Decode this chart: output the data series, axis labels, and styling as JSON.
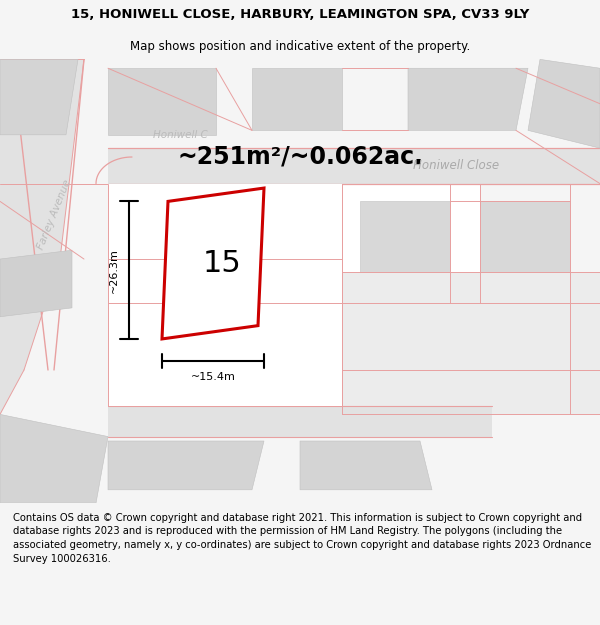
{
  "title_line1": "15, HONIWELL CLOSE, HARBURY, LEAMINGTON SPA, CV33 9LY",
  "title_line2": "Map shows position and indicative extent of the property.",
  "area_text": "~251m²/~0.062ac.",
  "width_label": "~15.4m",
  "height_label": "~26.3m",
  "number_label": "15",
  "street_label_honiwell_close": "Honiwell Close",
  "street_label_honiwell": "Honiwell C",
  "street_label_farley": "Farley Avenue",
  "footer_text": "Contains OS data © Crown copyright and database right 2021. This information is subject to Crown copyright and database rights 2023 and is reproduced with the permission of HM Land Registry. The polygons (including the associated geometry, namely x, y co-ordinates) are subject to Crown copyright and database rights 2023 Ordnance Survey 100026316.",
  "bg_color": "#f5f5f5",
  "map_bg": "#efefef",
  "building_color": "#d4d4d4",
  "building_edge": "#c0c0c0",
  "road_color": "#e2e2e2",
  "plot_bg": "#ffffff",
  "plot_edge_color": "#cc0000",
  "pink_line_color": "#e8a0a0",
  "dark_pink_color": "#d08080",
  "measurement_color": "#000000",
  "street_color": "#aaaaaa",
  "title_fontsize": 9.5,
  "subtitle_fontsize": 8.5,
  "footer_fontsize": 7.2,
  "area_fontsize": 17,
  "number_fontsize": 22,
  "measurement_fontsize": 8,
  "street_fontsize": 8.5
}
